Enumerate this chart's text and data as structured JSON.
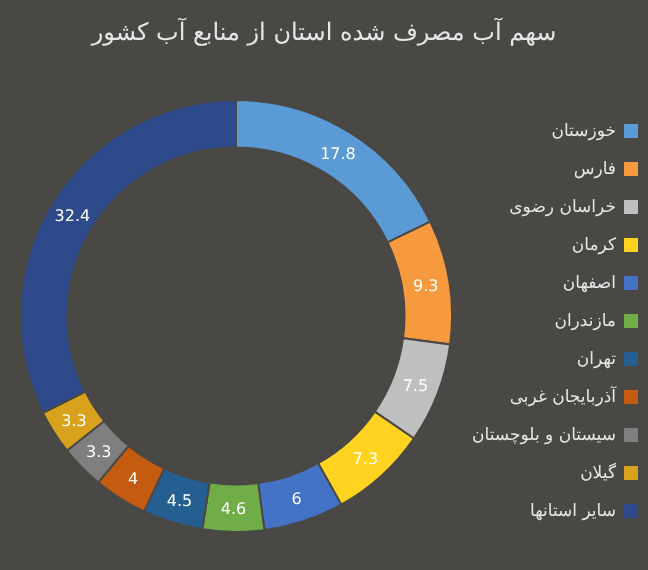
{
  "chart_data": {
    "type": "donut",
    "title": "سهم آب مصرف شده استان از منابع آب کشور",
    "categories": [
      "خوزستان",
      "فارس",
      "خراسان رضوی",
      "کرمان",
      "اصفهان",
      "مازندران",
      "تهران",
      "آذربایجان غربی",
      "سیستان و بلوچستان",
      "گیلان",
      "سایر استانها"
    ],
    "values": [
      17.8,
      9.3,
      7.5,
      7.3,
      6,
      4.6,
      4.5,
      4,
      3.3,
      3.3,
      32.4
    ],
    "colors": [
      "#5b9bd5",
      "#f79a3e",
      "#bfbfbf",
      "#ffd320",
      "#4472c4",
      "#70ad47",
      "#255e91",
      "#c55a11",
      "#7f7f7f",
      "#d8a21c",
      "#2f4a8a"
    ],
    "data_labels": true,
    "legend": "right"
  }
}
